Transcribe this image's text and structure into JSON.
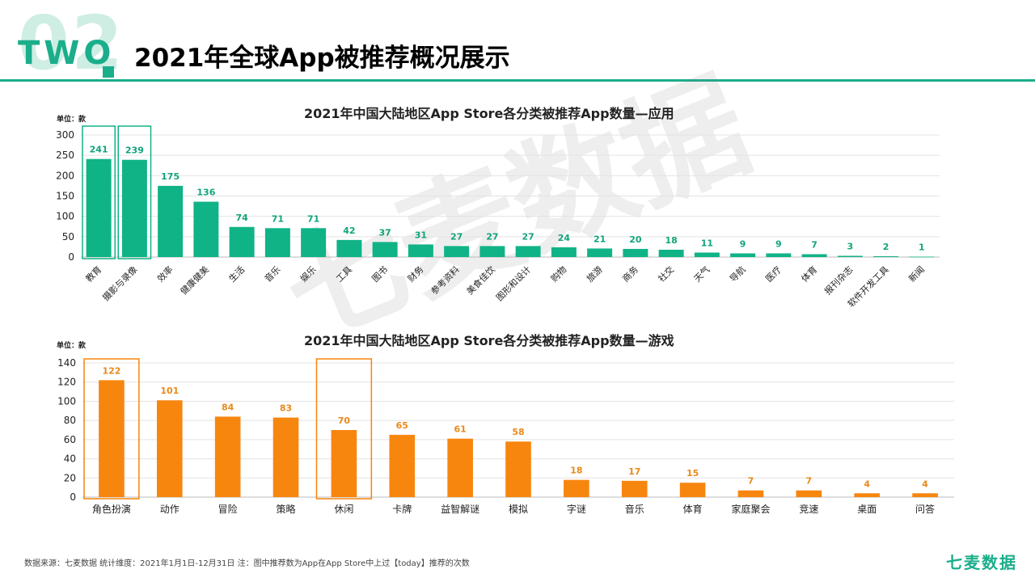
{
  "header": {
    "section_number": "02",
    "section_label": "TWO",
    "title": "2021年全球App被推荐概况展示"
  },
  "colors": {
    "accent": "#1aae8a",
    "apps_bar": "#10b386",
    "apps_label": "#10a47c",
    "games_bar": "#f7860f",
    "games_label": "#e88a1a",
    "highlight_apps": "#10b386",
    "highlight_games": "#f7860f"
  },
  "watermark": "七麦数据",
  "footer": {
    "source": "数据来源：七麦数据  统计维度：2021年1月1日-12月31日  注：图中推荐数为App在App Store中上过【today】推荐的次数",
    "brand": "七麦数据"
  },
  "chart_data": [
    {
      "type": "bar",
      "title": "2021年中国大陆地区App Store各分类被推荐App数量—应用",
      "unit_label": "单位：款",
      "categories": [
        "教育",
        "摄影与录像",
        "效率",
        "健康健美",
        "生活",
        "音乐",
        "娱乐",
        "工具",
        "图书",
        "财务",
        "参考资料",
        "美食佳饮",
        "图形和设计",
        "购物",
        "旅游",
        "商务",
        "社交",
        "天气",
        "导航",
        "医疗",
        "体育",
        "报刊杂志",
        "软件开发工具",
        "新闻"
      ],
      "values": [
        241,
        239,
        175,
        136,
        74,
        71,
        71,
        42,
        37,
        31,
        27,
        27,
        27,
        24,
        21,
        20,
        18,
        11,
        9,
        9,
        7,
        3,
        2,
        1
      ],
      "ylim": [
        0,
        300
      ],
      "yticks": [
        0,
        50,
        100,
        150,
        200,
        250,
        300
      ],
      "highlighted": [
        "教育",
        "摄影与录像"
      ],
      "grid": true
    },
    {
      "type": "bar",
      "title": "2021年中国大陆地区App Store各分类被推荐App数量—游戏",
      "unit_label": "单位：款",
      "categories": [
        "角色扮演",
        "动作",
        "冒险",
        "策略",
        "休闲",
        "卡牌",
        "益智解谜",
        "模拟",
        "字谜",
        "音乐",
        "体育",
        "家庭聚会",
        "竞速",
        "桌面",
        "问答"
      ],
      "values": [
        122,
        101,
        84,
        83,
        70,
        65,
        61,
        58,
        18,
        17,
        15,
        7,
        7,
        4,
        4
      ],
      "ylim": [
        0,
        140
      ],
      "yticks": [
        0,
        20,
        40,
        60,
        80,
        100,
        120,
        140
      ],
      "highlighted": [
        "角色扮演",
        "休闲"
      ],
      "grid": true
    }
  ]
}
